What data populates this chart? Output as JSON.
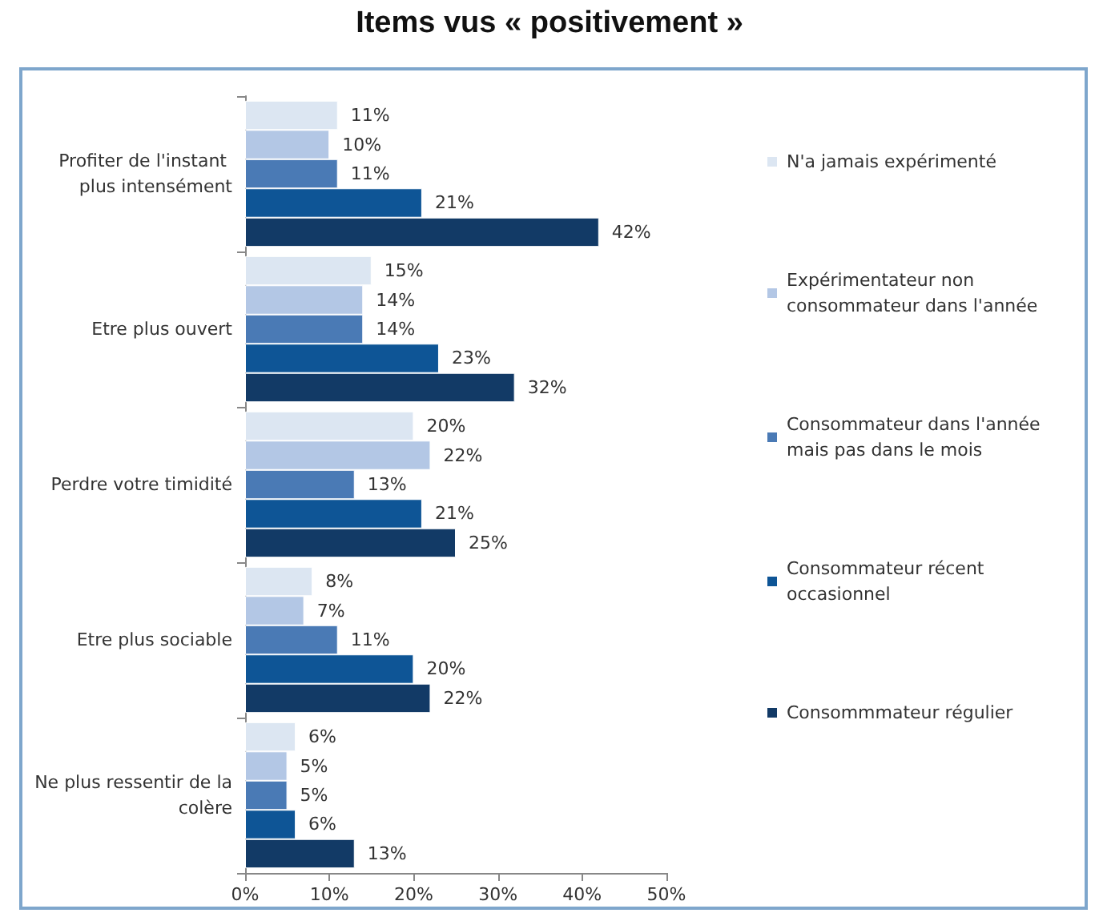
{
  "chart_data": {
    "type": "bar",
    "orientation": "horizontal",
    "title": "Items vus « positivement »",
    "categories": [
      "Profiter de l'instant plus intensément",
      "Etre plus ouvert",
      "Perdre votre timidité",
      "Etre plus sociable",
      "Ne plus ressentir de la colère"
    ],
    "series": [
      {
        "name": "N'a jamais expérimenté",
        "color": "#dce6f2",
        "values": [
          11,
          15,
          20,
          8,
          6
        ],
        "value_labels": [
          "11%",
          "15%",
          "20%",
          "8%",
          "6%"
        ]
      },
      {
        "name": "Expérimentateur non consommateur dans l'année",
        "color": "#b3c7e5",
        "values": [
          10,
          14,
          22,
          7,
          5
        ],
        "value_labels": [
          "10%",
          "14%",
          "22%",
          "7%",
          "5%"
        ]
      },
      {
        "name": "Consommateur dans l'année mais pas dans le mois",
        "color": "#4a7ab5",
        "values": [
          11,
          14,
          13,
          11,
          5
        ],
        "value_labels": [
          "11%",
          "14%",
          "13%",
          "11%",
          "5%"
        ]
      },
      {
        "name": "Consommateur récent occasionnel",
        "color": "#0e5596",
        "values": [
          21,
          23,
          21,
          20,
          6
        ],
        "value_labels": [
          "21%",
          "23%",
          "21%",
          "20%",
          "6%"
        ]
      },
      {
        "name": "Consommmateur régulier",
        "color": "#123a66",
        "values": [
          42,
          32,
          25,
          22,
          13
        ],
        "value_labels": [
          "42%",
          "32%",
          "25%",
          "22%",
          "13%"
        ]
      }
    ],
    "xlim": [
      0,
      50
    ],
    "xticks": [
      {
        "value": 0,
        "label": "0%"
      },
      {
        "value": 10,
        "label": "10%"
      },
      {
        "value": 20,
        "label": "20%"
      },
      {
        "value": 30,
        "label": "30%"
      },
      {
        "value": 40,
        "label": "40%"
      },
      {
        "value": 50,
        "label": "50%"
      }
    ],
    "grid": false,
    "legend": "right"
  }
}
